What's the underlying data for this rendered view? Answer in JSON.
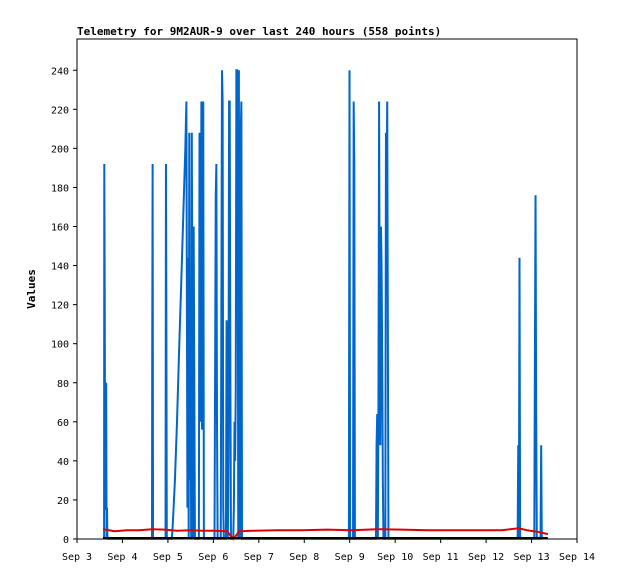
{
  "chart_data": {
    "type": "line",
    "title": "Telemetry for 9M2AUR-9 over last 240 hours (558 points)",
    "xlabel": "",
    "ylabel": "Values",
    "x_ticks": [
      "Sep 3",
      "Sep 4",
      "Sep 5",
      "Sep 6",
      "Sep 7",
      "Sep 8",
      "Sep 9",
      "Sep 10",
      "Sep 11",
      "Sep 12",
      "Sep 13",
      "Sep 14"
    ],
    "xlim": [
      0,
      240
    ],
    "ylim": [
      0,
      256
    ],
    "y_ticks": [
      0,
      20,
      40,
      60,
      80,
      100,
      120,
      140,
      160,
      180,
      200,
      220,
      240
    ],
    "grid": false,
    "legend": "none",
    "series": [
      {
        "color": "#0066cc",
        "points": [
          [
            13.0,
            0
          ],
          [
            13.1,
            192
          ],
          [
            13.3,
            128
          ],
          [
            13.5,
            30
          ],
          [
            13.6,
            60
          ],
          [
            13.8,
            15
          ],
          [
            14.0,
            80
          ],
          [
            14.2,
            0
          ],
          [
            14.4,
            16
          ],
          [
            14.6,
            0
          ],
          [
            36.0,
            0
          ],
          [
            36.1,
            96
          ],
          [
            36.3,
            192
          ],
          [
            36.5,
            0
          ],
          [
            42.5,
            0
          ],
          [
            42.7,
            192
          ],
          [
            42.9,
            112
          ],
          [
            43.1,
            0
          ],
          [
            45.5,
            0
          ],
          [
            46.0,
            8
          ],
          [
            47.0,
            30
          ],
          [
            48.0,
            60
          ],
          [
            49.0,
            96
          ],
          [
            50.0,
            130
          ],
          [
            51.0,
            165
          ],
          [
            52.0,
            200
          ],
          [
            52.5,
            224
          ],
          [
            53.0,
            16
          ],
          [
            53.3,
            144
          ],
          [
            53.6,
            0
          ],
          [
            53.9,
            208
          ],
          [
            54.2,
            30
          ],
          [
            54.5,
            100
          ],
          [
            54.8,
            0
          ],
          [
            55.1,
            208
          ],
          [
            55.4,
            112
          ],
          [
            55.7,
            0
          ],
          [
            56.0,
            160
          ],
          [
            56.3,
            80
          ],
          [
            56.6,
            0
          ],
          [
            58.5,
            0
          ],
          [
            58.8,
            208
          ],
          [
            59.1,
            200
          ],
          [
            59.4,
            60
          ],
          [
            59.7,
            224
          ],
          [
            60.0,
            56
          ],
          [
            60.3,
            184
          ],
          [
            60.6,
            224
          ],
          [
            60.9,
            0
          ],
          [
            66.0,
            0
          ],
          [
            66.3,
            88
          ],
          [
            66.6,
            176
          ],
          [
            66.9,
            192
          ],
          [
            67.2,
            60
          ],
          [
            67.5,
            0
          ],
          [
            69.0,
            0
          ],
          [
            69.3,
            120
          ],
          [
            69.6,
            240
          ],
          [
            69.9,
            224
          ],
          [
            70.2,
            16
          ],
          [
            70.5,
            0
          ],
          [
            71.5,
            0
          ],
          [
            71.8,
            112
          ],
          [
            72.1,
            96
          ],
          [
            72.4,
            0
          ],
          [
            72.7,
            40
          ],
          [
            73.0,
            224
          ],
          [
            73.3,
            224
          ],
          [
            73.6,
            90
          ],
          [
            73.9,
            0
          ],
          [
            75.0,
            0
          ],
          [
            75.3,
            16
          ],
          [
            75.6,
            60
          ],
          [
            75.9,
            40
          ],
          [
            76.2,
            76
          ],
          [
            76.5,
            240
          ],
          [
            76.8,
            240
          ],
          [
            77.1,
            208
          ],
          [
            77.4,
            0
          ],
          [
            77.7,
            240
          ],
          [
            78.0,
            40
          ],
          [
            78.3,
            0
          ],
          [
            78.6,
            208
          ],
          [
            78.9,
            224
          ],
          [
            79.2,
            0
          ],
          [
            130.5,
            0
          ],
          [
            130.8,
            240
          ],
          [
            131.1,
            0
          ],
          [
            132.5,
            0
          ],
          [
            132.8,
            224
          ],
          [
            133.1,
            192
          ],
          [
            133.4,
            0
          ],
          [
            143.5,
            0
          ],
          [
            143.8,
            48
          ],
          [
            144.1,
            64
          ],
          [
            144.4,
            0
          ],
          [
            144.7,
            70
          ],
          [
            145.0,
            224
          ],
          [
            145.3,
            112
          ],
          [
            145.6,
            48
          ],
          [
            145.9,
            160
          ],
          [
            146.2,
            140
          ],
          [
            146.5,
            90
          ],
          [
            146.8,
            30
          ],
          [
            147.1,
            0
          ],
          [
            148.0,
            0
          ],
          [
            148.3,
            208
          ],
          [
            148.6,
            176
          ],
          [
            148.9,
            224
          ],
          [
            149.2,
            112
          ],
          [
            149.5,
            0
          ],
          [
            211.5,
            0
          ],
          [
            211.8,
            48
          ],
          [
            212.1,
            0
          ],
          [
            212.4,
            144
          ],
          [
            212.7,
            0
          ],
          [
            219.5,
            0
          ],
          [
            219.8,
            96
          ],
          [
            220.1,
            176
          ],
          [
            220.4,
            64
          ],
          [
            220.7,
            0
          ],
          [
            222.5,
            0
          ],
          [
            222.8,
            48
          ],
          [
            223.1,
            0
          ]
        ]
      },
      {
        "color": "#dd0000",
        "points": [
          [
            12.5,
            5
          ],
          [
            18,
            4
          ],
          [
            24,
            4.5
          ],
          [
            30,
            4.5
          ],
          [
            36,
            5
          ],
          [
            42,
            4.8
          ],
          [
            48,
            4.2
          ],
          [
            54,
            4.5
          ],
          [
            60,
            4.2
          ],
          [
            66,
            4.2
          ],
          [
            72,
            4.0
          ],
          [
            75,
            0
          ],
          [
            78,
            4.0
          ],
          [
            84,
            4.2
          ],
          [
            96,
            4.5
          ],
          [
            108,
            4.5
          ],
          [
            120,
            4.8
          ],
          [
            132,
            4.5
          ],
          [
            144,
            5
          ],
          [
            156,
            4.8
          ],
          [
            168,
            4.5
          ],
          [
            180,
            4.5
          ],
          [
            192,
            4.5
          ],
          [
            204,
            4.5
          ],
          [
            212,
            5.5
          ],
          [
            216,
            4.5
          ],
          [
            222,
            3.5
          ],
          [
            226,
            2.5
          ]
        ]
      },
      {
        "color": "#000000",
        "points": [
          [
            12.5,
            0.5
          ],
          [
            226,
            0.5
          ]
        ]
      }
    ]
  }
}
